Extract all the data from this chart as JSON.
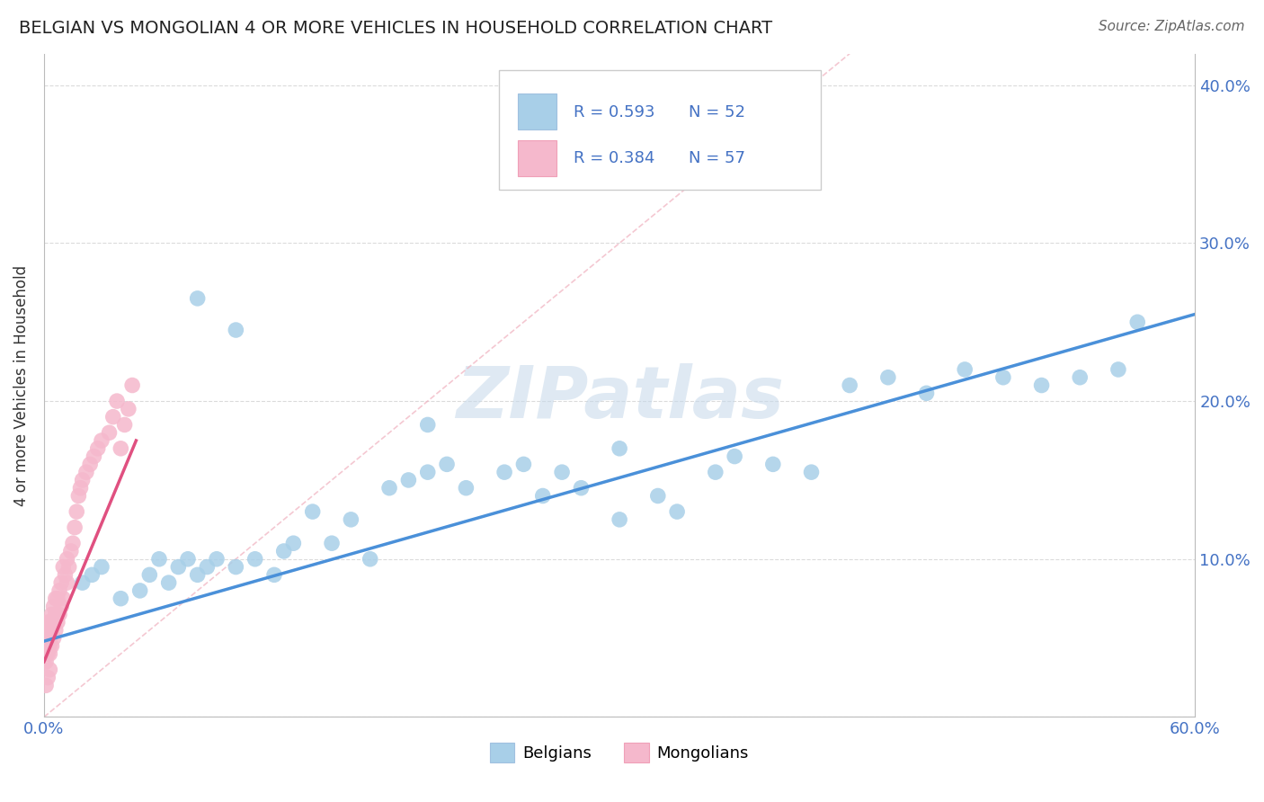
{
  "title": "BELGIAN VS MONGOLIAN 4 OR MORE VEHICLES IN HOUSEHOLD CORRELATION CHART",
  "source": "Source: ZipAtlas.com",
  "ylabel": "4 or more Vehicles in Household",
  "xlim": [
    0.0,
    0.6
  ],
  "ylim": [
    0.0,
    0.42
  ],
  "xticks": [
    0.0,
    0.1,
    0.2,
    0.3,
    0.4,
    0.5,
    0.6
  ],
  "yticks": [
    0.0,
    0.1,
    0.2,
    0.3,
    0.4
  ],
  "belgian_color": "#a8cfe8",
  "mongolian_color": "#f5b8cc",
  "belgian_line_color": "#4a90d9",
  "mongolian_line_color": "#e05080",
  "diagonal_line_color": "#f0b0be",
  "R_belgian": 0.593,
  "N_belgian": 52,
  "R_mongolian": 0.384,
  "N_mongolian": 57,
  "legend_color": "#4472c4",
  "watermark": "ZIPatlas",
  "watermark_color": "#c5d8ea",
  "belgians_x": [
    0.02,
    0.025,
    0.03,
    0.04,
    0.05,
    0.055,
    0.06,
    0.065,
    0.07,
    0.075,
    0.08,
    0.085,
    0.09,
    0.1,
    0.11,
    0.12,
    0.125,
    0.13,
    0.14,
    0.15,
    0.16,
    0.17,
    0.18,
    0.19,
    0.2,
    0.21,
    0.22,
    0.24,
    0.25,
    0.26,
    0.27,
    0.28,
    0.3,
    0.32,
    0.33,
    0.35,
    0.36,
    0.38,
    0.4,
    0.42,
    0.44,
    0.46,
    0.48,
    0.5,
    0.52,
    0.54,
    0.56,
    0.57,
    0.08,
    0.1,
    0.2,
    0.3
  ],
  "belgians_y": [
    0.085,
    0.09,
    0.095,
    0.075,
    0.08,
    0.09,
    0.1,
    0.085,
    0.095,
    0.1,
    0.09,
    0.095,
    0.1,
    0.095,
    0.1,
    0.09,
    0.105,
    0.11,
    0.13,
    0.11,
    0.125,
    0.1,
    0.145,
    0.15,
    0.155,
    0.16,
    0.145,
    0.155,
    0.16,
    0.14,
    0.155,
    0.145,
    0.125,
    0.14,
    0.13,
    0.155,
    0.165,
    0.16,
    0.155,
    0.21,
    0.215,
    0.205,
    0.22,
    0.215,
    0.21,
    0.215,
    0.22,
    0.25,
    0.265,
    0.245,
    0.185,
    0.17
  ],
  "mongolians_x": [
    0.001,
    0.001,
    0.001,
    0.001,
    0.001,
    0.002,
    0.002,
    0.002,
    0.002,
    0.002,
    0.003,
    0.003,
    0.003,
    0.003,
    0.004,
    0.004,
    0.004,
    0.005,
    0.005,
    0.005,
    0.006,
    0.006,
    0.006,
    0.007,
    0.007,
    0.008,
    0.008,
    0.009,
    0.009,
    0.01,
    0.01,
    0.011,
    0.012,
    0.012,
    0.013,
    0.014,
    0.015,
    0.016,
    0.017,
    0.018,
    0.019,
    0.02,
    0.022,
    0.024,
    0.026,
    0.028,
    0.03,
    0.034,
    0.036,
    0.038,
    0.04,
    0.042,
    0.044,
    0.046,
    0.001,
    0.002,
    0.003
  ],
  "mongolians_y": [
    0.035,
    0.04,
    0.045,
    0.05,
    0.055,
    0.04,
    0.045,
    0.05,
    0.055,
    0.06,
    0.04,
    0.045,
    0.05,
    0.06,
    0.045,
    0.055,
    0.065,
    0.05,
    0.06,
    0.07,
    0.055,
    0.065,
    0.075,
    0.06,
    0.075,
    0.065,
    0.08,
    0.07,
    0.085,
    0.075,
    0.095,
    0.09,
    0.085,
    0.1,
    0.095,
    0.105,
    0.11,
    0.12,
    0.13,
    0.14,
    0.145,
    0.15,
    0.155,
    0.16,
    0.165,
    0.17,
    0.175,
    0.18,
    0.19,
    0.2,
    0.17,
    0.185,
    0.195,
    0.21,
    0.02,
    0.025,
    0.03
  ],
  "bel_line_x": [
    0.0,
    0.6
  ],
  "bel_line_y": [
    0.048,
    0.255
  ],
  "mon_line_x": [
    0.0,
    0.048
  ],
  "mon_line_y": [
    0.035,
    0.175
  ],
  "diag_line_x": [
    0.0,
    0.42
  ],
  "diag_line_y": [
    0.0,
    0.42
  ]
}
